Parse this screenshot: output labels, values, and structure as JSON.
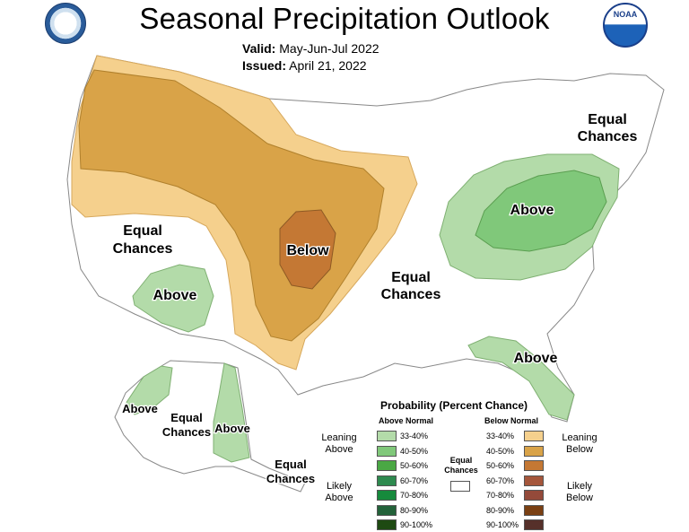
{
  "header": {
    "title": "Seasonal Precipitation Outlook",
    "valid_label": "Valid:",
    "valid_value": "May-Jun-Jul 2022",
    "issued_label": "Issued:",
    "issued_value": "April 21, 2022"
  },
  "logos": {
    "left": "commerce-seal-icon",
    "right_text": "NOAA"
  },
  "regions": {
    "below": "Below",
    "above_east": "Above",
    "above_southwest": "Above",
    "above_florida": "Above",
    "above_alaska_west": "Above",
    "above_alaska_south": "Above",
    "ec_northeast_1": "Equal",
    "ec_northeast_2": "Chances",
    "ec_west_1": "Equal",
    "ec_west_2": "Chances",
    "ec_central_1": "Equal",
    "ec_central_2": "Chances",
    "ec_alaska_1": "Equal",
    "ec_alaska_2": "Chances",
    "ec_panhandle_1": "Equal",
    "ec_panhandle_2": "Chances"
  },
  "legend": {
    "title": "Probability (Percent Chance)",
    "above_header": "Above Normal",
    "below_header": "Below Normal",
    "leaning_above": "Leaning\nAbove",
    "likely_above": "Likely\nAbove",
    "leaning_below": "Leaning\nBelow",
    "likely_below": "Likely\nBelow",
    "equal_chances": "Equal\nChances",
    "bins": [
      "33-40%",
      "40-50%",
      "50-60%",
      "60-70%",
      "70-80%",
      "80-90%",
      "90-100%"
    ],
    "above_colors": [
      "#b3dba9",
      "#80c87a",
      "#4aa844",
      "#2e8a4f",
      "#168a3c",
      "#23623a",
      "#1e4a12"
    ],
    "below_colors": [
      "#f5d08d",
      "#d9a348",
      "#c47834",
      "#a5563b",
      "#944a3a",
      "#7a4013",
      "#56302a"
    ]
  }
}
